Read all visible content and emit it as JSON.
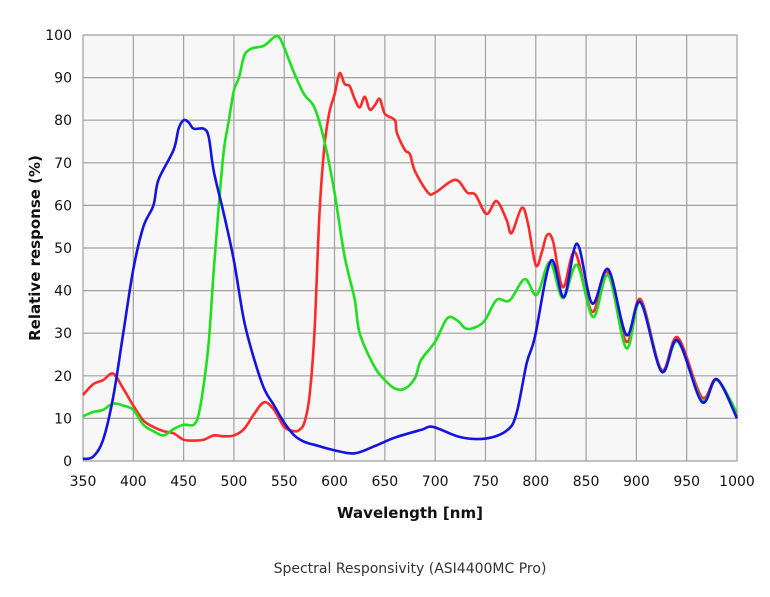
{
  "chart_data": {
    "type": "line",
    "title": "Spectral Responsivity (ASI4400MC Pro)",
    "xlabel": "Wavelength [nm]",
    "ylabel": "Relative response (%)",
    "xlim": [
      350,
      1000
    ],
    "ylim": [
      0,
      100
    ],
    "xticks": [
      350,
      400,
      450,
      500,
      550,
      600,
      650,
      700,
      750,
      800,
      850,
      900,
      950,
      1000
    ],
    "yticks": [
      0,
      10,
      20,
      30,
      40,
      50,
      60,
      70,
      80,
      90,
      100
    ],
    "grid": true,
    "legend": "none",
    "series": [
      {
        "color": "#ff2a2a",
        "points": [
          [
            350,
            15.5
          ],
          [
            360,
            18
          ],
          [
            370,
            19
          ],
          [
            380,
            20.5
          ],
          [
            390,
            17
          ],
          [
            400,
            13
          ],
          [
            410,
            9.5
          ],
          [
            420,
            8
          ],
          [
            430,
            7
          ],
          [
            440,
            6.5
          ],
          [
            450,
            5
          ],
          [
            460,
            4.8
          ],
          [
            470,
            5
          ],
          [
            480,
            6
          ],
          [
            490,
            5.8
          ],
          [
            500,
            6
          ],
          [
            510,
            7.5
          ],
          [
            520,
            11
          ],
          [
            530,
            13.8
          ],
          [
            540,
            12
          ],
          [
            550,
            8
          ],
          [
            560,
            7
          ],
          [
            565,
            7.3
          ],
          [
            570,
            9
          ],
          [
            575,
            15
          ],
          [
            580,
            30
          ],
          [
            585,
            58
          ],
          [
            590,
            74
          ],
          [
            595,
            82
          ],
          [
            600,
            86
          ],
          [
            605,
            91
          ],
          [
            610,
            88.5
          ],
          [
            615,
            88
          ],
          [
            620,
            85
          ],
          [
            625,
            83
          ],
          [
            630,
            85.5
          ],
          [
            635,
            82.5
          ],
          [
            640,
            83.5
          ],
          [
            645,
            85
          ],
          [
            650,
            81.5
          ],
          [
            660,
            80
          ],
          [
            662,
            77
          ],
          [
            670,
            73
          ],
          [
            675,
            72
          ],
          [
            680,
            68
          ],
          [
            693,
            63
          ],
          [
            700,
            63
          ],
          [
            720,
            66
          ],
          [
            732,
            63
          ],
          [
            740,
            62.5
          ],
          [
            751,
            58
          ],
          [
            761,
            61
          ],
          [
            771,
            56.6
          ],
          [
            776,
            53.5
          ],
          [
            786,
            59.4
          ],
          [
            792,
            56
          ],
          [
            800,
            46
          ],
          [
            806,
            49
          ],
          [
            811,
            53
          ],
          [
            817,
            51.7
          ],
          [
            827,
            40.8
          ],
          [
            839,
            49
          ],
          [
            856,
            35
          ],
          [
            871,
            44.4
          ],
          [
            890,
            28
          ],
          [
            904,
            38
          ],
          [
            925,
            21.4
          ],
          [
            941,
            29
          ],
          [
            965,
            15
          ],
          [
            980,
            19.2
          ],
          [
            1000,
            10.5
          ]
        ]
      },
      {
        "color": "#1ee01e",
        "points": [
          [
            350,
            10.5
          ],
          [
            360,
            11.5
          ],
          [
            370,
            12
          ],
          [
            380,
            13.5
          ],
          [
            390,
            13
          ],
          [
            400,
            12
          ],
          [
            410,
            8.5
          ],
          [
            420,
            7
          ],
          [
            430,
            6
          ],
          [
            440,
            7.5
          ],
          [
            450,
            8.5
          ],
          [
            460,
            8.5
          ],
          [
            465,
            11
          ],
          [
            470,
            18
          ],
          [
            475,
            28
          ],
          [
            480,
            45
          ],
          [
            485,
            60
          ],
          [
            490,
            73
          ],
          [
            495,
            80
          ],
          [
            500,
            87
          ],
          [
            505,
            90
          ],
          [
            510,
            95
          ],
          [
            515,
            96.5
          ],
          [
            520,
            97
          ],
          [
            530,
            97.5
          ],
          [
            540,
            99.5
          ],
          [
            545,
            99.5
          ],
          [
            550,
            97
          ],
          [
            560,
            91
          ],
          [
            570,
            86
          ],
          [
            580,
            83
          ],
          [
            590,
            75
          ],
          [
            600,
            63
          ],
          [
            610,
            48
          ],
          [
            620,
            38
          ],
          [
            625,
            30
          ],
          [
            640,
            22
          ],
          [
            650,
            19
          ],
          [
            660,
            17
          ],
          [
            670,
            17
          ],
          [
            680,
            19.5
          ],
          [
            686,
            23.7
          ],
          [
            700,
            28
          ],
          [
            712,
            33.5
          ],
          [
            722,
            33
          ],
          [
            732,
            31
          ],
          [
            748,
            32.6
          ],
          [
            761,
            37.8
          ],
          [
            774,
            37.7
          ],
          [
            789,
            42.7
          ],
          [
            801,
            39
          ],
          [
            814,
            46.7
          ],
          [
            827,
            38.2
          ],
          [
            841,
            46
          ],
          [
            857,
            33.8
          ],
          [
            872,
            43.6
          ],
          [
            890,
            26.5
          ],
          [
            904,
            37.3
          ],
          [
            925,
            21
          ],
          [
            941,
            28
          ],
          [
            965,
            14.3
          ],
          [
            980,
            19
          ],
          [
            1000,
            11.3
          ]
        ]
      },
      {
        "color": "#1414e0",
        "points": [
          [
            350,
            0.5
          ],
          [
            360,
            1
          ],
          [
            370,
            5
          ],
          [
            380,
            15
          ],
          [
            390,
            30
          ],
          [
            400,
            45
          ],
          [
            410,
            55
          ],
          [
            420,
            60
          ],
          [
            425,
            66
          ],
          [
            440,
            73
          ],
          [
            445,
            78
          ],
          [
            450,
            80
          ],
          [
            455,
            79.5
          ],
          [
            460,
            78
          ],
          [
            470,
            78
          ],
          [
            475,
            76
          ],
          [
            480,
            68
          ],
          [
            490,
            58
          ],
          [
            500,
            47
          ],
          [
            510,
            33
          ],
          [
            520,
            24
          ],
          [
            530,
            17
          ],
          [
            540,
            13
          ],
          [
            550,
            9
          ],
          [
            560,
            6
          ],
          [
            570,
            4.5
          ],
          [
            580,
            3.8
          ],
          [
            600,
            2.5
          ],
          [
            620,
            1.8
          ],
          [
            640,
            3.5
          ],
          [
            660,
            5.5
          ],
          [
            686,
            7.3
          ],
          [
            698,
            8
          ],
          [
            725,
            5.6
          ],
          [
            751,
            5.3
          ],
          [
            772,
            7.3
          ],
          [
            781,
            11.3
          ],
          [
            791,
            23
          ],
          [
            799,
            29
          ],
          [
            815,
            47
          ],
          [
            828,
            38.5
          ],
          [
            841,
            51
          ],
          [
            856,
            37
          ],
          [
            872,
            45
          ],
          [
            890,
            29.6
          ],
          [
            904,
            37.3
          ],
          [
            925,
            21
          ],
          [
            941,
            28.3
          ],
          [
            965,
            13.9
          ],
          [
            980,
            19.2
          ],
          [
            1000,
            10
          ]
        ]
      }
    ]
  }
}
